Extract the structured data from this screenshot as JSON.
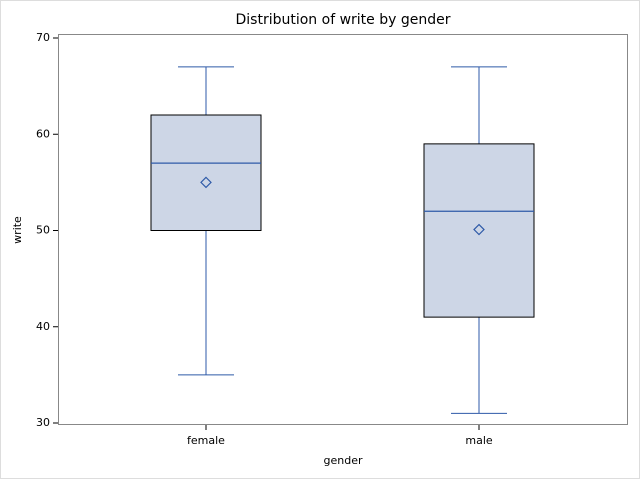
{
  "chart_data": {
    "type": "box",
    "title": "Distribution of write by gender",
    "x_label": "gender",
    "y_label": "write",
    "categories": [
      "female",
      "male"
    ],
    "boxes": [
      {
        "min": 35,
        "q1": 50,
        "median": 57,
        "q3": 62,
        "max": 67,
        "mean": 55
      },
      {
        "min": 31,
        "q1": 41,
        "median": 52,
        "q3": 59,
        "max": 67,
        "mean": 50.1
      }
    ],
    "box_color": "#cdd6e6",
    "line_color": "#2e5aa8",
    "ylim": [
      30,
      70
    ],
    "yticks": [
      30,
      40,
      50,
      60,
      70
    ]
  }
}
